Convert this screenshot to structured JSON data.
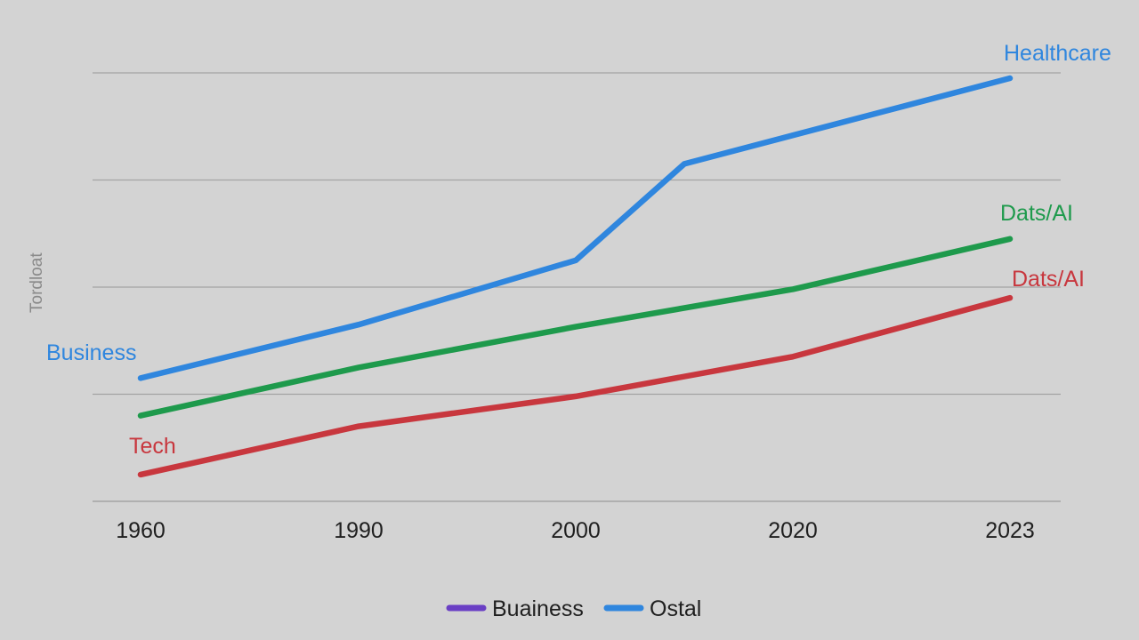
{
  "chart_data": {
    "type": "line",
    "title": "",
    "xlabel": "",
    "ylabel": "Tordloat",
    "categories": [
      "1960",
      "1990",
      "2000",
      "2020",
      "2023"
    ],
    "ylim": [
      0,
      100
    ],
    "grid": true,
    "series": [
      {
        "name": "Healthcare",
        "color": "#2f86de",
        "x": [
          1960,
          1975,
          1990,
          2000,
          2010,
          2023
        ],
        "values": [
          11.5,
          16.0,
          16.5,
          22.5,
          31.5,
          39.5
        ],
        "y": [
          11.5,
          16.0,
          16.5,
          22.5,
          31.5,
          39.5
        ]
      }
    ],
    "lines": [
      {
        "label": "Healthcare",
        "color": "#2f86de",
        "points": [
          [
            1960,
            11.5
          ],
          [
            1990,
            16.5
          ],
          [
            2000,
            22.5
          ],
          [
            2010,
            31.5
          ],
          [
            2023,
            39.5
          ]
        ]
      },
      {
        "label": "Dats/AI",
        "color": "#1e9a4c",
        "points": [
          [
            1960,
            8.0
          ],
          [
            1990,
            12.5
          ],
          [
            2000,
            16.3
          ],
          [
            2020,
            19.8
          ],
          [
            2023,
            24.5
          ]
        ]
      },
      {
        "label": "Dats/AI",
        "color": "#c8373e",
        "points": [
          [
            1960,
            2.5
          ],
          [
            1990,
            7.0
          ],
          [
            2000,
            9.8
          ],
          [
            2020,
            13.5
          ],
          [
            2023,
            19.0
          ]
        ]
      }
    ],
    "annotations": [
      {
        "text": "Healthcare",
        "color": "#2f86de"
      },
      {
        "text": "Dats/AI",
        "color": "#1e9a4c"
      },
      {
        "text": "Dats/AI",
        "color": "#c8373e"
      },
      {
        "text": "Business",
        "color": "#2f86de"
      },
      {
        "text": "Tech",
        "color": "#c8373e"
      }
    ],
    "legend": {
      "placement": "bottom-center",
      "items": [
        {
          "label": "Buainess",
          "color": "#6a3fc4"
        },
        {
          "label": "Ostal",
          "color": "#2f86de"
        }
      ]
    }
  }
}
